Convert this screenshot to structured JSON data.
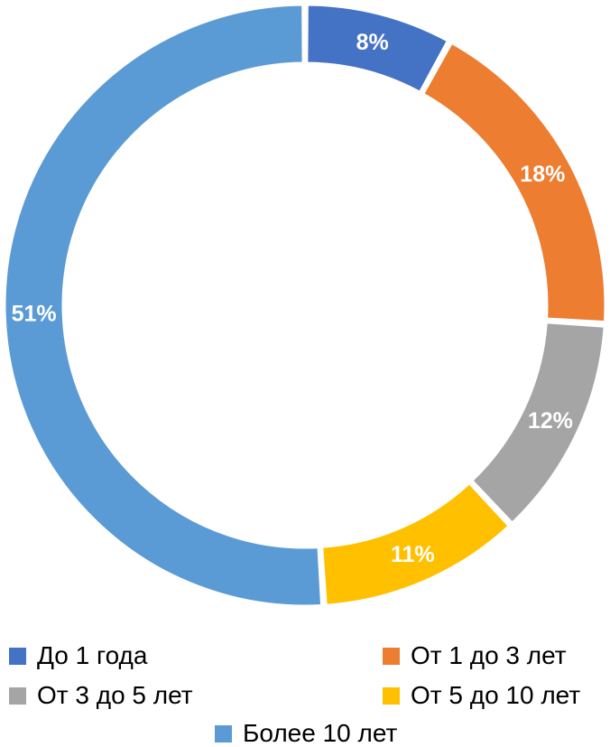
{
  "chart_data": {
    "type": "pie",
    "variant": "donut",
    "title": "",
    "categories": [
      "До 1 года",
      "От 1 до 3 лет",
      "От 3 до 5 лет",
      "От 5 до 10 лет",
      "Более 10 лет"
    ],
    "values": [
      8,
      18,
      12,
      11,
      51
    ],
    "value_labels": [
      "8%",
      "18%",
      "12%",
      "11%",
      "51%"
    ],
    "colors": [
      "#4472C4",
      "#ED7D31",
      "#A5A5A5",
      "#FFC000",
      "#5B9BD5"
    ],
    "legend_position": "bottom"
  }
}
